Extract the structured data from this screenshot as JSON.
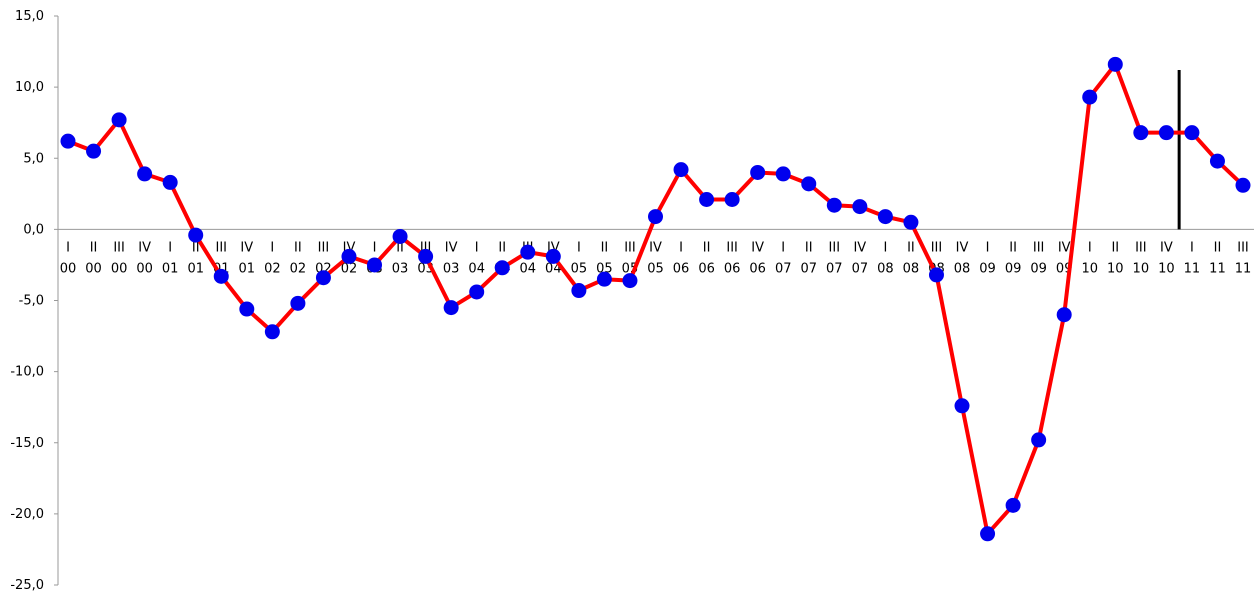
{
  "chart_data": {
    "type": "line",
    "title": "",
    "xlabel": "",
    "ylabel": "",
    "ylim": [
      -25,
      15
    ],
    "yticks": [
      15,
      10,
      5,
      0,
      -5,
      -10,
      -15,
      -20,
      -25
    ],
    "ytick_labels": [
      "15,0",
      "10,0",
      "5,0",
      "0,0",
      "-5,0",
      "-10,0",
      "-15,0",
      "-20,0",
      "-25,0"
    ],
    "categories": [
      "I 00",
      "II 00",
      "III 00",
      "IV 00",
      "I 01",
      "II 01",
      "III 01",
      "IV 01",
      "I 02",
      "II 02",
      "III 02",
      "IV 02",
      "I 03",
      "II 03",
      "III 03",
      "IV 03",
      "I 04",
      "II 04",
      "III 04",
      "IV 04",
      "I 05",
      "II 05",
      "III 05",
      "IV 05",
      "I 06",
      "II 06",
      "III 06",
      "IV 06",
      "I 07",
      "II 07",
      "III 07",
      "IV 07",
      "I 08",
      "II 08",
      "III 08",
      "IV 08",
      "I 09",
      "II 09",
      "III 09",
      "IV 09",
      "I 10",
      "II 10",
      "III 10",
      "IV 10",
      "I 11",
      "II 11",
      "III 11"
    ],
    "quarters": [
      "I",
      "II",
      "III",
      "IV",
      "I",
      "II",
      "III",
      "IV",
      "I",
      "II",
      "III",
      "IV",
      "I",
      "II",
      "III",
      "IV",
      "I",
      "II",
      "III",
      "IV",
      "I",
      "II",
      "III",
      "IV",
      "I",
      "II",
      "III",
      "IV",
      "I",
      "II",
      "III",
      "IV",
      "I",
      "II",
      "III",
      "IV",
      "I",
      "II",
      "III",
      "IV",
      "I",
      "II",
      "III",
      "IV",
      "I",
      "II",
      "III"
    ],
    "years": [
      "00",
      "00",
      "00",
      "00",
      "01",
      "01",
      "01",
      "01",
      "02",
      "02",
      "02",
      "02",
      "03",
      "03",
      "03",
      "03",
      "04",
      "04",
      "04",
      "04",
      "05",
      "05",
      "05",
      "05",
      "06",
      "06",
      "06",
      "06",
      "07",
      "07",
      "07",
      "07",
      "08",
      "08",
      "08",
      "08",
      "09",
      "09",
      "09",
      "09",
      "10",
      "10",
      "10",
      "10",
      "11",
      "11",
      "11"
    ],
    "series": [
      {
        "values": [
          6.2,
          5.5,
          7.7,
          3.9,
          3.3,
          -0.4,
          -3.3,
          -5.6,
          -7.2,
          -5.2,
          -3.4,
          -1.9,
          -2.5,
          -0.5,
          -1.9,
          -5.5,
          -4.4,
          -2.7,
          -1.6,
          -1.9,
          -4.3,
          -3.5,
          -3.6,
          0.9,
          4.2,
          2.1,
          2.1,
          4.0,
          3.9,
          3.2,
          1.7,
          1.6,
          0.9,
          0.5,
          -3.2,
          -12.4,
          -21.4,
          -19.4,
          -14.8,
          -6.0,
          9.3,
          11.6,
          6.8,
          6.8,
          6.8,
          4.8,
          3.1
        ],
        "line_color": "#ff0000",
        "marker_color": "#0000ee"
      }
    ],
    "marker_after_category": "IV 10",
    "marker_line_color": "#000000",
    "grid": false,
    "legend": "none"
  }
}
